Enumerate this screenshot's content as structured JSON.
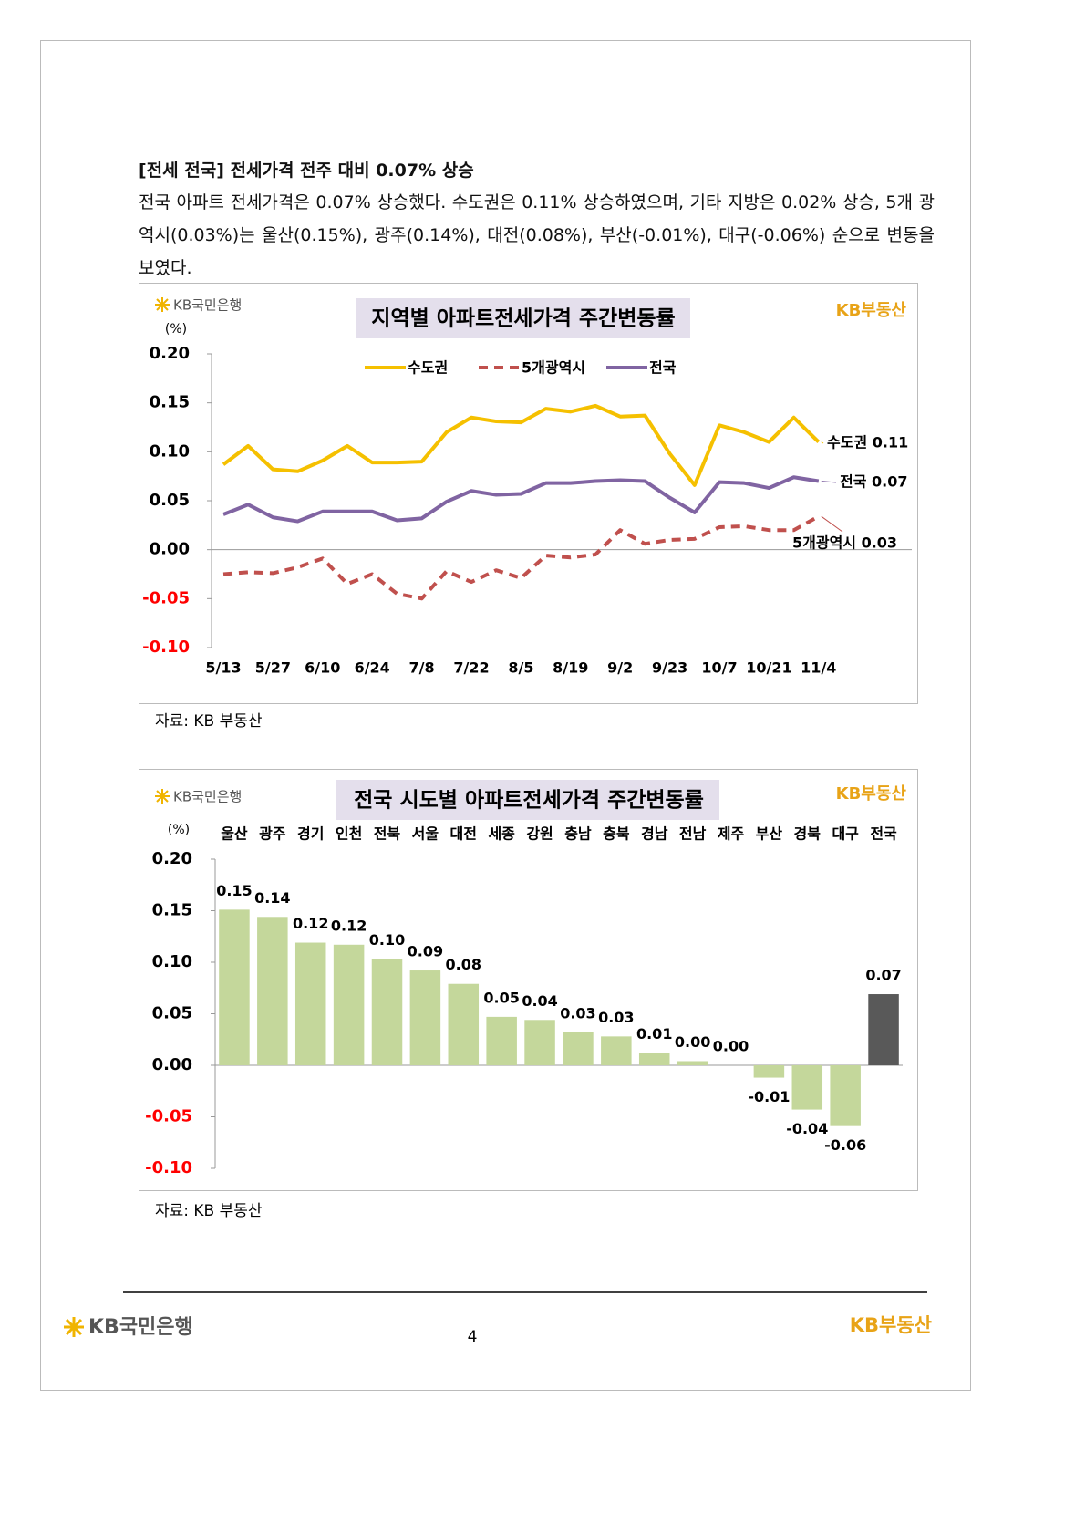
{
  "heading": "[전세 전국] 전세가격 전주 대비 0.07% 상승",
  "paragraph": "전국 아파트 전세가격은 0.07% 상승했다. 수도권은 0.11% 상승하였으며, 기타 지방은 0.02% 상승, 5개 광역시(0.03%)는 울산(0.15%), 광주(0.14%), 대전(0.08%), 부산(-0.01%), 대구(-0.06%) 순으로 변동을 보였다.",
  "logos": {
    "bank": "KB국민은행",
    "realty": "KB부동산"
  },
  "chart_data": [
    {
      "type": "line",
      "title": "지역별 아파트전세가격 주간변동률",
      "title_background": "#e4dfec",
      "y_unit": "(%)",
      "categories": [
        "5/13",
        null,
        "5/27",
        null,
        "6/10",
        null,
        "6/24",
        null,
        "7/8",
        null,
        "7/22",
        null,
        "8/5",
        null,
        "8/19",
        null,
        "9/2",
        null,
        "9/23",
        null,
        "10/7",
        null,
        "10/21",
        null,
        "11/4"
      ],
      "series": [
        {
          "name": "수도권",
          "color": "#f5c000",
          "dash": "solid",
          "values": [
            0.087,
            0.106,
            0.082,
            0.08,
            0.091,
            0.106,
            0.089,
            0.089,
            0.09,
            0.12,
            0.135,
            0.131,
            0.13,
            0.144,
            0.141,
            0.147,
            0.136,
            0.137,
            0.098,
            0.066,
            0.127,
            0.12,
            0.11,
            0.135,
            0.11
          ]
        },
        {
          "name": "5개광역시",
          "color": "#c0504d",
          "dash": "dashed",
          "values": [
            -0.025,
            -0.023,
            -0.024,
            -0.018,
            -0.009,
            -0.035,
            -0.025,
            -0.045,
            -0.05,
            -0.022,
            -0.033,
            -0.021,
            -0.029,
            -0.006,
            -0.008,
            -0.005,
            0.02,
            0.006,
            0.01,
            0.011,
            0.023,
            0.024,
            0.02,
            0.02,
            0.034
          ]
        },
        {
          "name": "전국",
          "color": "#8064a2",
          "dash": "solid",
          "values": [
            0.036,
            0.046,
            0.033,
            0.029,
            0.039,
            0.039,
            0.039,
            0.03,
            0.032,
            0.049,
            0.06,
            0.056,
            0.057,
            0.068,
            0.068,
            0.07,
            0.071,
            0.07,
            0.053,
            0.038,
            0.069,
            0.068,
            0.063,
            0.074,
            0.07
          ]
        }
      ],
      "ylim": [
        -0.1,
        0.2
      ],
      "yticks": [
        {
          "value": -0.1,
          "label": "-0.10"
        },
        {
          "value": -0.05,
          "label": "-0.05"
        },
        {
          "value": 0,
          "label": "0.00"
        },
        {
          "value": 0.05,
          "label": "0.05"
        },
        {
          "value": 0.1,
          "label": "0.10"
        },
        {
          "value": 0.15,
          "label": "0.15"
        },
        {
          "value": 0.2,
          "label": "0.20"
        }
      ],
      "negative_tick_color": "#ff0000",
      "annotations": [
        "수도권 0.11",
        "전국 0.07",
        "5개광역시 0.03"
      ]
    },
    {
      "type": "bar",
      "title": "전국 시도별 아파트전세가격 주간변동률",
      "title_background": "#e4dfec",
      "y_unit": "(%)",
      "categories": [
        "울산",
        "광주",
        "경기",
        "인천",
        "전북",
        "서울",
        "대전",
        "세종",
        "강원",
        "충남",
        "충북",
        "경남",
        "전남",
        "제주",
        "부산",
        "경북",
        "대구",
        "전국"
      ],
      "values": [
        0.151,
        0.144,
        0.119,
        0.117,
        0.103,
        0.092,
        0.079,
        0.047,
        0.044,
        0.032,
        0.028,
        0.012,
        0.004,
        0,
        -0.012,
        -0.043,
        -0.059,
        0.069
      ],
      "value_labels": [
        "0.15",
        "0.14",
        "0.12",
        "0.12",
        "0.10",
        "0.09",
        "0.08",
        "0.05",
        "0.04",
        "0.03",
        "0.03",
        "0.01",
        "0.00",
        "0.00",
        "-0.01",
        "-0.04",
        "-0.06",
        "0.07"
      ],
      "colors": [
        "#c4d79b",
        "#c4d79b",
        "#c4d79b",
        "#c4d79b",
        "#c4d79b",
        "#c4d79b",
        "#c4d79b",
        "#c4d79b",
        "#c4d79b",
        "#c4d79b",
        "#c4d79b",
        "#c4d79b",
        "#c4d79b",
        "#c4d79b",
        "#c4d79b",
        "#c4d79b",
        "#c4d79b",
        "#595959"
      ],
      "ylim": [
        -0.1,
        0.2
      ],
      "yticks": [
        {
          "value": -0.1,
          "label": "-0.10"
        },
        {
          "value": -0.05,
          "label": "-0.05"
        },
        {
          "value": 0,
          "label": "0.00"
        },
        {
          "value": 0.05,
          "label": "0.05"
        },
        {
          "value": 0.1,
          "label": "0.10"
        },
        {
          "value": 0.15,
          "label": "0.15"
        },
        {
          "value": 0.2,
          "label": "0.20"
        }
      ],
      "negative_tick_color": "#ff0000"
    }
  ],
  "sources": [
    "자료: KB 부동산",
    "자료: KB 부동산"
  ],
  "page_number": "4"
}
